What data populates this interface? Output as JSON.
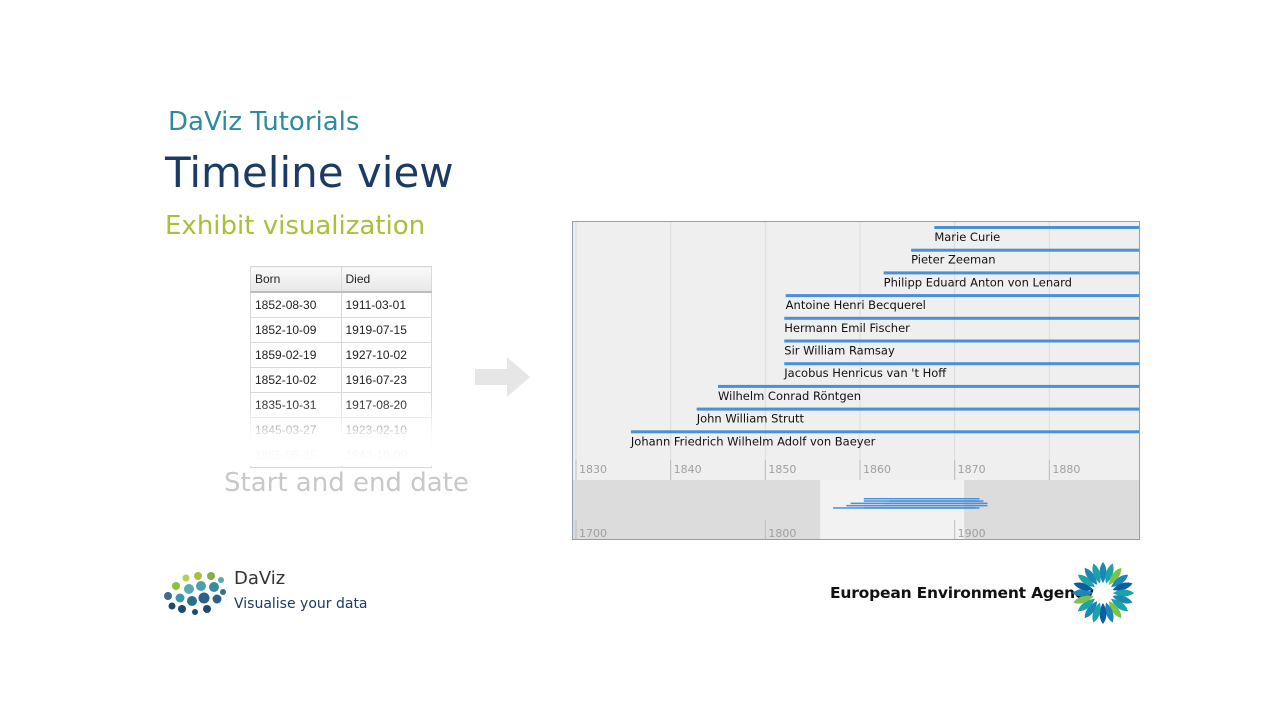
{
  "header": {
    "subtitle": "DaViz Tutorials",
    "title": "Timeline view",
    "section": "Exhibit visualization"
  },
  "table": {
    "columns": [
      "Born",
      "Died"
    ],
    "rows": [
      [
        "1852-08-30",
        "1911-03-01"
      ],
      [
        "1852-10-09",
        "1919-07-15"
      ],
      [
        "1859-02-19",
        "1927-10-02"
      ],
      [
        "1852-10-02",
        "1916-07-23"
      ],
      [
        "1835-10-31",
        "1917-08-20"
      ],
      [
        "1845-03-27",
        "1923-02-10"
      ],
      [
        "1865-05-25",
        "1943-10-09"
      ]
    ],
    "caption": "Start and end date"
  },
  "arrow": {
    "icon": "right-arrow-icon"
  },
  "timeline": {
    "events": [
      {
        "label": "Marie Curie",
        "start": 1867.85
      },
      {
        "label": "Pieter Zeeman",
        "start": 1865.4
      },
      {
        "label": "Philipp Eduard Anton von Lenard",
        "start": 1862.5
      },
      {
        "label": "Antoine Henri Becquerel",
        "start": 1852.15
      },
      {
        "label": "Hermann Emil Fischer",
        "start": 1852.0
      },
      {
        "label": "Sir William Ramsay",
        "start": 1852.0
      },
      {
        "label": "Jacobus Henricus van 't Hoff",
        "start": 1852.0
      },
      {
        "label": "Wilhelm Conrad Röntgen",
        "start": 1845.0
      },
      {
        "label": "John William Strutt",
        "start": 1842.75
      },
      {
        "label": "Johann Friedrich Wilhelm Adolf von Baeyer",
        "start": 1835.8
      }
    ],
    "upper_band": {
      "ticks": [
        "1830",
        "1840",
        "1850",
        "1860",
        "1870",
        "1880"
      ],
      "start_year": 1830,
      "end_year": 1890
    },
    "lower_band": {
      "ticks": [
        "1700",
        "1800",
        "1900"
      ],
      "start_year": 1700,
      "end_year": 2000
    },
    "bar_color": "#4a90d9"
  },
  "footer": {
    "daviz_name": "DaViz",
    "daviz_tagline": "Visualise your data",
    "eea_name": "European Environment Agency"
  }
}
